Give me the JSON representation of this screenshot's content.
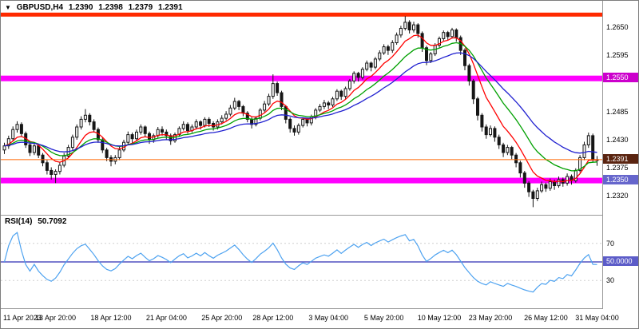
{
  "header": {
    "symbol_period": "GBPUSD,H4",
    "open": "1.2390",
    "high": "1.2398",
    "low": "1.2379",
    "close": "1.2391"
  },
  "chart_data": {
    "type": "candlestick",
    "symbol": "GBPUSD",
    "timeframe": "H4",
    "price_range": [
      1.2283,
      1.2702
    ],
    "candles": [
      [
        1.241,
        1.2424,
        1.2402,
        1.2418
      ],
      [
        1.2418,
        1.2438,
        1.2412,
        1.2432
      ],
      [
        1.2432,
        1.2456,
        1.2428,
        1.245
      ],
      [
        1.245,
        1.2466,
        1.2444,
        1.246
      ],
      [
        1.246,
        1.2464,
        1.2436,
        1.2442
      ],
      [
        1.2442,
        1.2446,
        1.2414,
        1.242
      ],
      [
        1.242,
        1.2426,
        1.2398,
        1.2405
      ],
      [
        1.2405,
        1.2422,
        1.24,
        1.2418
      ],
      [
        1.2418,
        1.242,
        1.2394,
        1.24
      ],
      [
        1.24,
        1.2404,
        1.2378,
        1.2385
      ],
      [
        1.2385,
        1.239,
        1.2362,
        1.237
      ],
      [
        1.237,
        1.2376,
        1.2352,
        1.2362
      ],
      [
        1.2362,
        1.2372,
        1.2345,
        1.2368
      ],
      [
        1.2368,
        1.2386,
        1.2362,
        1.238
      ],
      [
        1.238,
        1.2404,
        1.2376,
        1.2398
      ],
      [
        1.2398,
        1.242,
        1.2394,
        1.2415
      ],
      [
        1.2415,
        1.244,
        1.241,
        1.2435
      ],
      [
        1.2435,
        1.246,
        1.243,
        1.2455
      ],
      [
        1.2455,
        1.2476,
        1.245,
        1.247
      ],
      [
        1.247,
        1.249,
        1.2464,
        1.2478
      ],
      [
        1.2478,
        1.2482,
        1.2458,
        1.2465
      ],
      [
        1.2465,
        1.247,
        1.2444,
        1.245
      ],
      [
        1.245,
        1.2454,
        1.2424,
        1.243
      ],
      [
        1.243,
        1.2434,
        1.2404,
        1.241
      ],
      [
        1.241,
        1.2414,
        1.2388,
        1.2395
      ],
      [
        1.2395,
        1.24,
        1.2378,
        1.2388
      ],
      [
        1.2388,
        1.24,
        1.2382,
        1.2395
      ],
      [
        1.2395,
        1.2416,
        1.239,
        1.241
      ],
      [
        1.241,
        1.243,
        1.2406,
        1.2425
      ],
      [
        1.2425,
        1.2446,
        1.242,
        1.244
      ],
      [
        1.244,
        1.2444,
        1.2424,
        1.2432
      ],
      [
        1.2432,
        1.245,
        1.2428,
        1.2445
      ],
      [
        1.2445,
        1.246,
        1.244,
        1.2455
      ],
      [
        1.2455,
        1.2458,
        1.2436,
        1.2442
      ],
      [
        1.2442,
        1.2446,
        1.2422,
        1.243
      ],
      [
        1.243,
        1.2442,
        1.2424,
        1.2438
      ],
      [
        1.2438,
        1.2455,
        1.2434,
        1.245
      ],
      [
        1.245,
        1.2456,
        1.2438,
        1.2445
      ],
      [
        1.2445,
        1.245,
        1.243,
        1.2438
      ],
      [
        1.2438,
        1.2442,
        1.242,
        1.2428
      ],
      [
        1.2428,
        1.2444,
        1.2424,
        1.244
      ],
      [
        1.244,
        1.2456,
        1.2436,
        1.2452
      ],
      [
        1.2452,
        1.2466,
        1.2448,
        1.246
      ],
      [
        1.246,
        1.2464,
        1.2442,
        1.2448
      ],
      [
        1.2448,
        1.246,
        1.2444,
        1.2455
      ],
      [
        1.2455,
        1.247,
        1.245,
        1.2465
      ],
      [
        1.2465,
        1.2468,
        1.245,
        1.2458
      ],
      [
        1.2458,
        1.2474,
        1.2454,
        1.247
      ],
      [
        1.247,
        1.2474,
        1.2455,
        1.2462
      ],
      [
        1.2462,
        1.2466,
        1.2448,
        1.2455
      ],
      [
        1.2455,
        1.247,
        1.245,
        1.2465
      ],
      [
        1.2465,
        1.2478,
        1.246,
        1.2472
      ],
      [
        1.2472,
        1.2486,
        1.2468,
        1.248
      ],
      [
        1.248,
        1.2498,
        1.2476,
        1.2492
      ],
      [
        1.2492,
        1.2512,
        1.2488,
        1.2505
      ],
      [
        1.2505,
        1.2508,
        1.2488,
        1.2495
      ],
      [
        1.2495,
        1.2498,
        1.2476,
        1.2482
      ],
      [
        1.2482,
        1.2486,
        1.2464,
        1.247
      ],
      [
        1.247,
        1.2474,
        1.2452,
        1.246
      ],
      [
        1.246,
        1.2476,
        1.2456,
        1.2472
      ],
      [
        1.2472,
        1.2492,
        1.2468,
        1.2488
      ],
      [
        1.2488,
        1.2506,
        1.2484,
        1.25
      ],
      [
        1.25,
        1.252,
        1.2496,
        1.2515
      ],
      [
        1.2515,
        1.2558,
        1.251,
        1.254
      ],
      [
        1.254,
        1.2544,
        1.2516,
        1.2522
      ],
      [
        1.2522,
        1.2526,
        1.2488,
        1.2495
      ],
      [
        1.2495,
        1.2498,
        1.2462,
        1.247
      ],
      [
        1.247,
        1.2474,
        1.2444,
        1.2452
      ],
      [
        1.2452,
        1.2458,
        1.2438,
        1.2445
      ],
      [
        1.2445,
        1.2462,
        1.244,
        1.2458
      ],
      [
        1.2458,
        1.2474,
        1.2454,
        1.247
      ],
      [
        1.247,
        1.2473,
        1.2456,
        1.2463
      ],
      [
        1.2463,
        1.2479,
        1.2458,
        1.2475
      ],
      [
        1.2475,
        1.2492,
        1.247,
        1.2488
      ],
      [
        1.2488,
        1.25,
        1.2484,
        1.2495
      ],
      [
        1.2495,
        1.2508,
        1.249,
        1.2502
      ],
      [
        1.2502,
        1.2506,
        1.249,
        1.2498
      ],
      [
        1.2498,
        1.2514,
        1.2494,
        1.251
      ],
      [
        1.251,
        1.2529,
        1.2506,
        1.2525
      ],
      [
        1.2525,
        1.2528,
        1.2508,
        1.2515
      ],
      [
        1.2515,
        1.2534,
        1.251,
        1.253
      ],
      [
        1.253,
        1.2549,
        1.2526,
        1.2545
      ],
      [
        1.2545,
        1.2564,
        1.254,
        1.256
      ],
      [
        1.256,
        1.2563,
        1.2544,
        1.2552
      ],
      [
        1.2552,
        1.2572,
        1.2548,
        1.2568
      ],
      [
        1.2568,
        1.2585,
        1.2564,
        1.258
      ],
      [
        1.258,
        1.2583,
        1.2564,
        1.2572
      ],
      [
        1.2572,
        1.2592,
        1.2568,
        1.2588
      ],
      [
        1.2588,
        1.2605,
        1.2584,
        1.26
      ],
      [
        1.26,
        1.2617,
        1.2596,
        1.2612
      ],
      [
        1.2612,
        1.2616,
        1.2596,
        1.2605
      ],
      [
        1.2605,
        1.2625,
        1.26,
        1.262
      ],
      [
        1.262,
        1.264,
        1.2616,
        1.2635
      ],
      [
        1.2635,
        1.2653,
        1.263,
        1.2648
      ],
      [
        1.2648,
        1.2672,
        1.2644,
        1.266
      ],
      [
        1.266,
        1.2664,
        1.2638,
        1.2645
      ],
      [
        1.2645,
        1.2661,
        1.264,
        1.2655
      ],
      [
        1.2655,
        1.2658,
        1.263,
        1.2638
      ],
      [
        1.2638,
        1.2642,
        1.2602,
        1.261
      ],
      [
        1.261,
        1.2614,
        1.2576,
        1.2585
      ],
      [
        1.2585,
        1.2602,
        1.258,
        1.2598
      ],
      [
        1.2598,
        1.2619,
        1.2594,
        1.2615
      ],
      [
        1.2615,
        1.2632,
        1.261,
        1.2628
      ],
      [
        1.2628,
        1.2644,
        1.2624,
        1.264
      ],
      [
        1.264,
        1.2643,
        1.2624,
        1.2632
      ],
      [
        1.2632,
        1.2649,
        1.2628,
        1.2645
      ],
      [
        1.2645,
        1.2648,
        1.2622,
        1.263
      ],
      [
        1.263,
        1.2634,
        1.2596,
        1.2605
      ],
      [
        1.2605,
        1.2609,
        1.2566,
        1.2575
      ],
      [
        1.2575,
        1.2579,
        1.2536,
        1.2545
      ],
      [
        1.2545,
        1.2549,
        1.25,
        1.251
      ],
      [
        1.251,
        1.2514,
        1.2468,
        1.2478
      ],
      [
        1.2478,
        1.2482,
        1.2446,
        1.2455
      ],
      [
        1.2455,
        1.246,
        1.2432,
        1.244
      ],
      [
        1.244,
        1.2458,
        1.2436,
        1.2452
      ],
      [
        1.2452,
        1.2456,
        1.2426,
        1.2435
      ],
      [
        1.2435,
        1.244,
        1.2412,
        1.242
      ],
      [
        1.242,
        1.2424,
        1.2396,
        1.2405
      ],
      [
        1.2405,
        1.242,
        1.24,
        1.2415
      ],
      [
        1.2415,
        1.2418,
        1.2392,
        1.24
      ],
      [
        1.24,
        1.2404,
        1.2376,
        1.2385
      ],
      [
        1.2385,
        1.2389,
        1.2356,
        1.2365
      ],
      [
        1.2365,
        1.2369,
        1.2336,
        1.2345
      ],
      [
        1.2345,
        1.2349,
        1.2318,
        1.2328
      ],
      [
        1.2328,
        1.2332,
        1.2298,
        1.2315
      ],
      [
        1.2315,
        1.2336,
        1.231,
        1.233
      ],
      [
        1.233,
        1.2348,
        1.2326,
        1.2342
      ],
      [
        1.2342,
        1.2346,
        1.2328,
        1.2335
      ],
      [
        1.2335,
        1.2354,
        1.233,
        1.2348
      ],
      [
        1.2348,
        1.2352,
        1.2332,
        1.234
      ],
      [
        1.234,
        1.2358,
        1.2336,
        1.2352
      ],
      [
        1.2352,
        1.2356,
        1.2338,
        1.2345
      ],
      [
        1.2345,
        1.2364,
        1.234,
        1.2358
      ],
      [
        1.2358,
        1.2362,
        1.2342,
        1.235
      ],
      [
        1.235,
        1.2374,
        1.2346,
        1.237
      ],
      [
        1.237,
        1.24,
        1.2366,
        1.2395
      ],
      [
        1.2395,
        1.2426,
        1.239,
        1.242
      ],
      [
        1.242,
        1.2444,
        1.2414,
        1.2438
      ],
      [
        1.2438,
        1.2442,
        1.2386,
        1.2392
      ],
      [
        1.239,
        1.2398,
        1.2379,
        1.2391
      ]
    ],
    "x_ticks": [
      {
        "index": 0,
        "label": "11 Apr 2023"
      },
      {
        "index": 12,
        "label": "13 Apr 20:00"
      },
      {
        "index": 25,
        "label": "18 Apr 12:00"
      },
      {
        "index": 38,
        "label": "21 Apr 04:00"
      },
      {
        "index": 51,
        "label": "25 Apr 20:00"
      },
      {
        "index": 63,
        "label": "28 Apr 12:00"
      },
      {
        "index": 76,
        "label": "3 May 04:00"
      },
      {
        "index": 89,
        "label": "5 May 20:00"
      },
      {
        "index": 102,
        "label": "10 May 12:00"
      },
      {
        "index": 114,
        "label": "23 May 20:00"
      },
      {
        "index": 127,
        "label": "26 May 12:00"
      },
      {
        "index": 139,
        "label": "31 May 04:00"
      }
    ],
    "overlays": {
      "moving_averages": [
        {
          "name": "ma-fast-red",
          "method": "ema",
          "period": 8,
          "color": "#ff0000"
        },
        {
          "name": "ma-medium-green",
          "method": "ema",
          "period": 16,
          "color": "#00a000"
        },
        {
          "name": "ma-slow-blue",
          "method": "ema",
          "period": 28,
          "color": "#2020d0"
        }
      ],
      "horizontal_lines": [
        {
          "name": "resistance-line",
          "price": 1.2675,
          "color": "#ff2a00",
          "thickness": 5
        },
        {
          "name": "supply-zone-line",
          "price": 1.255,
          "color": "#ff00ff",
          "thickness": 7
        },
        {
          "name": "demand-zone-line",
          "price": 1.235,
          "color": "#ff00ff",
          "thickness": 7
        },
        {
          "name": "current-price-line",
          "price": 1.2391,
          "color": "#ff6600",
          "thickness": 1
        }
      ]
    },
    "y_axis": {
      "plain_labels": [
        "1.2650",
        "1.2595",
        "1.2485",
        "1.2430",
        "1.2375",
        "1.2320"
      ],
      "badges": [
        {
          "text": "1.2550",
          "price": 1.255,
          "bg": "#cc00cc"
        },
        {
          "text": "1.2391",
          "price": 1.2391,
          "bg": "#5a2410"
        },
        {
          "text": "1.2350",
          "price": 1.235,
          "bg": "#6666cc"
        }
      ]
    },
    "rsi": {
      "label": "RSI(14)",
      "value": "50.7092",
      "period": 14,
      "range": [
        0,
        100
      ],
      "line_color": "#4da2f0",
      "levels": [
        {
          "value": 70,
          "text": "70",
          "style": "dotted"
        },
        {
          "value": 50,
          "text": "50.0000",
          "style": "solid",
          "color": "#5050c0",
          "badge_bg": "#5c5cc8"
        },
        {
          "value": 30,
          "text": "30",
          "style": "dotted"
        }
      ]
    }
  }
}
